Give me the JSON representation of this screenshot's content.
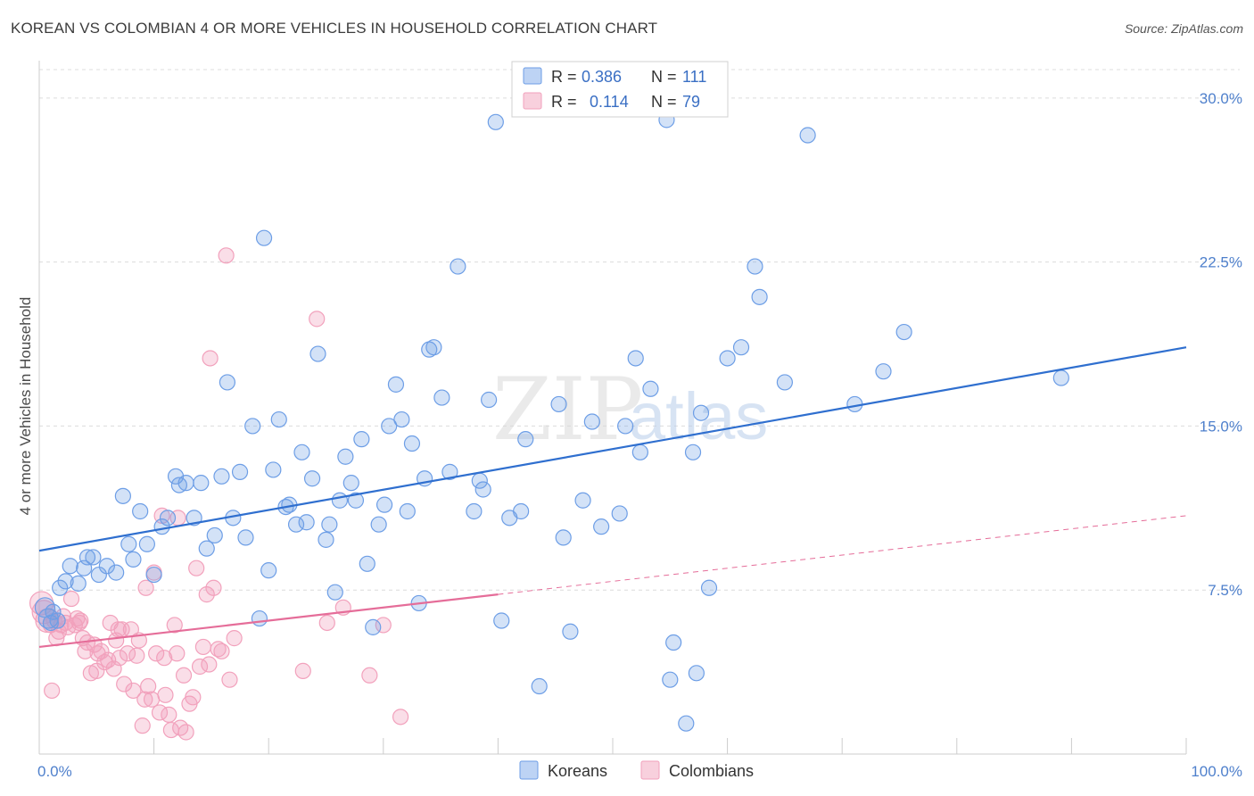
{
  "header": {
    "title": "KOREAN VS COLOMBIAN 4 OR MORE VEHICLES IN HOUSEHOLD CORRELATION CHART",
    "source": "Source: ZipAtlas.com"
  },
  "watermark": {
    "zip": "ZIP",
    "atlas": "atlas"
  },
  "colors": {
    "korean": "#6d9ee6",
    "korean_line": "#2f6fcf",
    "colombian": "#f2a1bc",
    "colombian_line": "#e56d99",
    "tick": "#4f80cc",
    "grid": "#dcdcdc"
  },
  "legend": {
    "korean": {
      "r_label": "R = ",
      "r_value": "0.386",
      "n_label": "N = ",
      "n_value": "111"
    },
    "colombian": {
      "r_label": "R = ",
      "r_value": "0.114",
      "n_label": "N = ",
      "n_value": "79"
    }
  },
  "chart_data": {
    "type": "scatter",
    "title": "KOREAN VS COLOMBIAN 4 OR MORE VEHICLES IN HOUSEHOLD CORRELATION CHART",
    "ylabel": "4 or more Vehicles in Household",
    "xlabel": "",
    "xlim": [
      0,
      100
    ],
    "ylim": [
      0,
      31.3
    ],
    "x_ticks": [
      "0.0%",
      "100.0%"
    ],
    "y_ticks": [
      {
        "value": 7.5,
        "label": "7.5%"
      },
      {
        "value": 15.0,
        "label": "15.0%"
      },
      {
        "value": 22.5,
        "label": "22.5%"
      },
      {
        "value": 30.0,
        "label": "30.0%"
      }
    ],
    "grid": true,
    "legend_position": "top-center",
    "series": [
      {
        "name": "Koreans",
        "r": 0.386,
        "n": 111,
        "trend": {
          "x": [
            0,
            100
          ],
          "y": [
            9.3,
            18.6
          ],
          "dashed_beyond": null
        },
        "points": [
          [
            0.5,
            6.7
          ],
          [
            0.8,
            6.2
          ],
          [
            1.0,
            6.0
          ],
          [
            1.2,
            6.5
          ],
          [
            1.6,
            6.1
          ],
          [
            1.8,
            7.6
          ],
          [
            2.3,
            7.9
          ],
          [
            2.7,
            8.6
          ],
          [
            3.4,
            7.8
          ],
          [
            3.9,
            8.5
          ],
          [
            4.2,
            9.0
          ],
          [
            4.7,
            9.0
          ],
          [
            5.2,
            8.2
          ],
          [
            5.9,
            8.6
          ],
          [
            6.7,
            8.3
          ],
          [
            7.3,
            11.8
          ],
          [
            7.8,
            9.6
          ],
          [
            8.2,
            8.9
          ],
          [
            8.8,
            11.1
          ],
          [
            9.4,
            9.6
          ],
          [
            10.0,
            8.2
          ],
          [
            10.7,
            10.4
          ],
          [
            11.2,
            10.8
          ],
          [
            11.9,
            12.7
          ],
          [
            12.2,
            12.3
          ],
          [
            12.8,
            12.4
          ],
          [
            13.5,
            10.8
          ],
          [
            14.1,
            12.4
          ],
          [
            14.6,
            9.4
          ],
          [
            15.3,
            10.0
          ],
          [
            15.9,
            12.7
          ],
          [
            16.4,
            17.0
          ],
          [
            16.9,
            10.8
          ],
          [
            17.5,
            12.9
          ],
          [
            18.0,
            9.9
          ],
          [
            18.6,
            15.0
          ],
          [
            19.2,
            6.2
          ],
          [
            19.6,
            23.6
          ],
          [
            20.0,
            8.4
          ],
          [
            20.4,
            13.0
          ],
          [
            20.9,
            15.3
          ],
          [
            21.5,
            11.3
          ],
          [
            21.8,
            11.4
          ],
          [
            22.4,
            10.5
          ],
          [
            22.9,
            13.8
          ],
          [
            23.3,
            10.6
          ],
          [
            23.8,
            12.6
          ],
          [
            24.3,
            18.3
          ],
          [
            25.0,
            9.8
          ],
          [
            25.3,
            10.5
          ],
          [
            25.8,
            7.4
          ],
          [
            26.2,
            11.6
          ],
          [
            26.7,
            13.6
          ],
          [
            27.2,
            12.4
          ],
          [
            27.6,
            11.6
          ],
          [
            28.1,
            14.4
          ],
          [
            28.6,
            8.7
          ],
          [
            29.1,
            5.8
          ],
          [
            29.6,
            10.5
          ],
          [
            30.1,
            11.4
          ],
          [
            30.5,
            15.0
          ],
          [
            31.1,
            16.9
          ],
          [
            31.6,
            15.3
          ],
          [
            32.1,
            11.1
          ],
          [
            32.5,
            14.2
          ],
          [
            33.1,
            6.9
          ],
          [
            33.6,
            12.6
          ],
          [
            34.0,
            18.5
          ],
          [
            34.4,
            18.6
          ],
          [
            35.1,
            16.3
          ],
          [
            35.8,
            12.9
          ],
          [
            36.5,
            22.3
          ],
          [
            37.9,
            11.1
          ],
          [
            38.4,
            12.5
          ],
          [
            38.7,
            12.1
          ],
          [
            39.2,
            16.2
          ],
          [
            39.8,
            28.9
          ],
          [
            40.3,
            6.1
          ],
          [
            41.0,
            10.8
          ],
          [
            42.0,
            11.1
          ],
          [
            42.4,
            14.4
          ],
          [
            43.6,
            3.1
          ],
          [
            45.3,
            16.0
          ],
          [
            45.7,
            9.9
          ],
          [
            46.3,
            5.6
          ],
          [
            47.4,
            11.6
          ],
          [
            48.2,
            15.2
          ],
          [
            49.0,
            10.4
          ],
          [
            50.6,
            11.0
          ],
          [
            51.1,
            15.0
          ],
          [
            52.0,
            18.1
          ],
          [
            52.4,
            13.8
          ],
          [
            53.3,
            16.7
          ],
          [
            54.7,
            29.0
          ],
          [
            55.0,
            3.4
          ],
          [
            55.3,
            5.1
          ],
          [
            56.4,
            1.4
          ],
          [
            57.0,
            13.8
          ],
          [
            57.3,
            3.7
          ],
          [
            57.7,
            15.6
          ],
          [
            58.4,
            7.6
          ],
          [
            60.0,
            18.1
          ],
          [
            61.2,
            18.6
          ],
          [
            62.4,
            22.3
          ],
          [
            62.8,
            20.9
          ],
          [
            65.0,
            17.0
          ],
          [
            71.1,
            16.0
          ],
          [
            73.6,
            17.5
          ],
          [
            75.4,
            19.3
          ],
          [
            89.1,
            17.2
          ],
          [
            67.0,
            28.3
          ]
        ]
      },
      {
        "name": "Colombians",
        "r": 0.114,
        "n": 79,
        "trend": {
          "x": [
            0,
            40
          ],
          "y": [
            4.9,
            7.3
          ],
          "dashed_to": [
            100,
            10.9
          ]
        },
        "points": [
          [
            0.2,
            6.9
          ],
          [
            0.4,
            6.5
          ],
          [
            0.7,
            6.1
          ],
          [
            1.0,
            5.9
          ],
          [
            1.3,
            6.1
          ],
          [
            1.5,
            5.3
          ],
          [
            1.7,
            5.6
          ],
          [
            1.9,
            5.9
          ],
          [
            2.1,
            6.3
          ],
          [
            2.3,
            6.0
          ],
          [
            2.5,
            5.8
          ],
          [
            2.8,
            7.1
          ],
          [
            3.1,
            5.9
          ],
          [
            3.3,
            6.2
          ],
          [
            3.5,
            6.0
          ],
          [
            3.8,
            5.3
          ],
          [
            4.0,
            4.7
          ],
          [
            4.2,
            5.1
          ],
          [
            4.5,
            3.7
          ],
          [
            4.8,
            5.0
          ],
          [
            5.1,
            4.6
          ],
          [
            5.4,
            4.7
          ],
          [
            5.7,
            4.2
          ],
          [
            6.0,
            4.3
          ],
          [
            6.2,
            6.0
          ],
          [
            6.5,
            3.9
          ],
          [
            6.7,
            5.2
          ],
          [
            7.0,
            4.4
          ],
          [
            7.2,
            5.7
          ],
          [
            7.4,
            3.2
          ],
          [
            7.7,
            4.6
          ],
          [
            8.0,
            5.7
          ],
          [
            8.2,
            2.9
          ],
          [
            8.5,
            4.5
          ],
          [
            8.7,
            5.2
          ],
          [
            9.0,
            1.3
          ],
          [
            9.2,
            2.5
          ],
          [
            9.5,
            3.1
          ],
          [
            9.8,
            2.5
          ],
          [
            10.0,
            8.3
          ],
          [
            10.2,
            4.6
          ],
          [
            10.5,
            1.9
          ],
          [
            10.7,
            10.9
          ],
          [
            11.0,
            2.7
          ],
          [
            11.3,
            1.8
          ],
          [
            11.5,
            1.1
          ],
          [
            11.8,
            5.9
          ],
          [
            12.0,
            4.6
          ],
          [
            12.3,
            1.2
          ],
          [
            12.6,
            3.6
          ],
          [
            12.8,
            1.0
          ],
          [
            13.1,
            2.3
          ],
          [
            13.4,
            2.6
          ],
          [
            13.7,
            8.5
          ],
          [
            14.0,
            4.0
          ],
          [
            14.3,
            4.9
          ],
          [
            14.6,
            7.3
          ],
          [
            14.9,
            18.1
          ],
          [
            15.2,
            7.6
          ],
          [
            15.6,
            4.8
          ],
          [
            15.9,
            4.7
          ],
          [
            16.3,
            22.8
          ],
          [
            16.6,
            3.4
          ],
          [
            17.0,
            5.3
          ],
          [
            23.0,
            3.8
          ],
          [
            24.2,
            19.9
          ],
          [
            25.1,
            6.0
          ],
          [
            26.5,
            6.7
          ],
          [
            28.8,
            3.6
          ],
          [
            30.0,
            5.9
          ],
          [
            31.5,
            1.7
          ],
          [
            1.1,
            2.9
          ],
          [
            3.6,
            6.1
          ],
          [
            5.0,
            3.8
          ],
          [
            6.9,
            5.7
          ],
          [
            9.3,
            7.6
          ],
          [
            10.9,
            4.4
          ],
          [
            12.1,
            10.8
          ],
          [
            14.8,
            4.1
          ]
        ]
      }
    ]
  },
  "bottom_legend": [
    {
      "label": "Koreans"
    },
    {
      "label": "Colombians"
    }
  ]
}
